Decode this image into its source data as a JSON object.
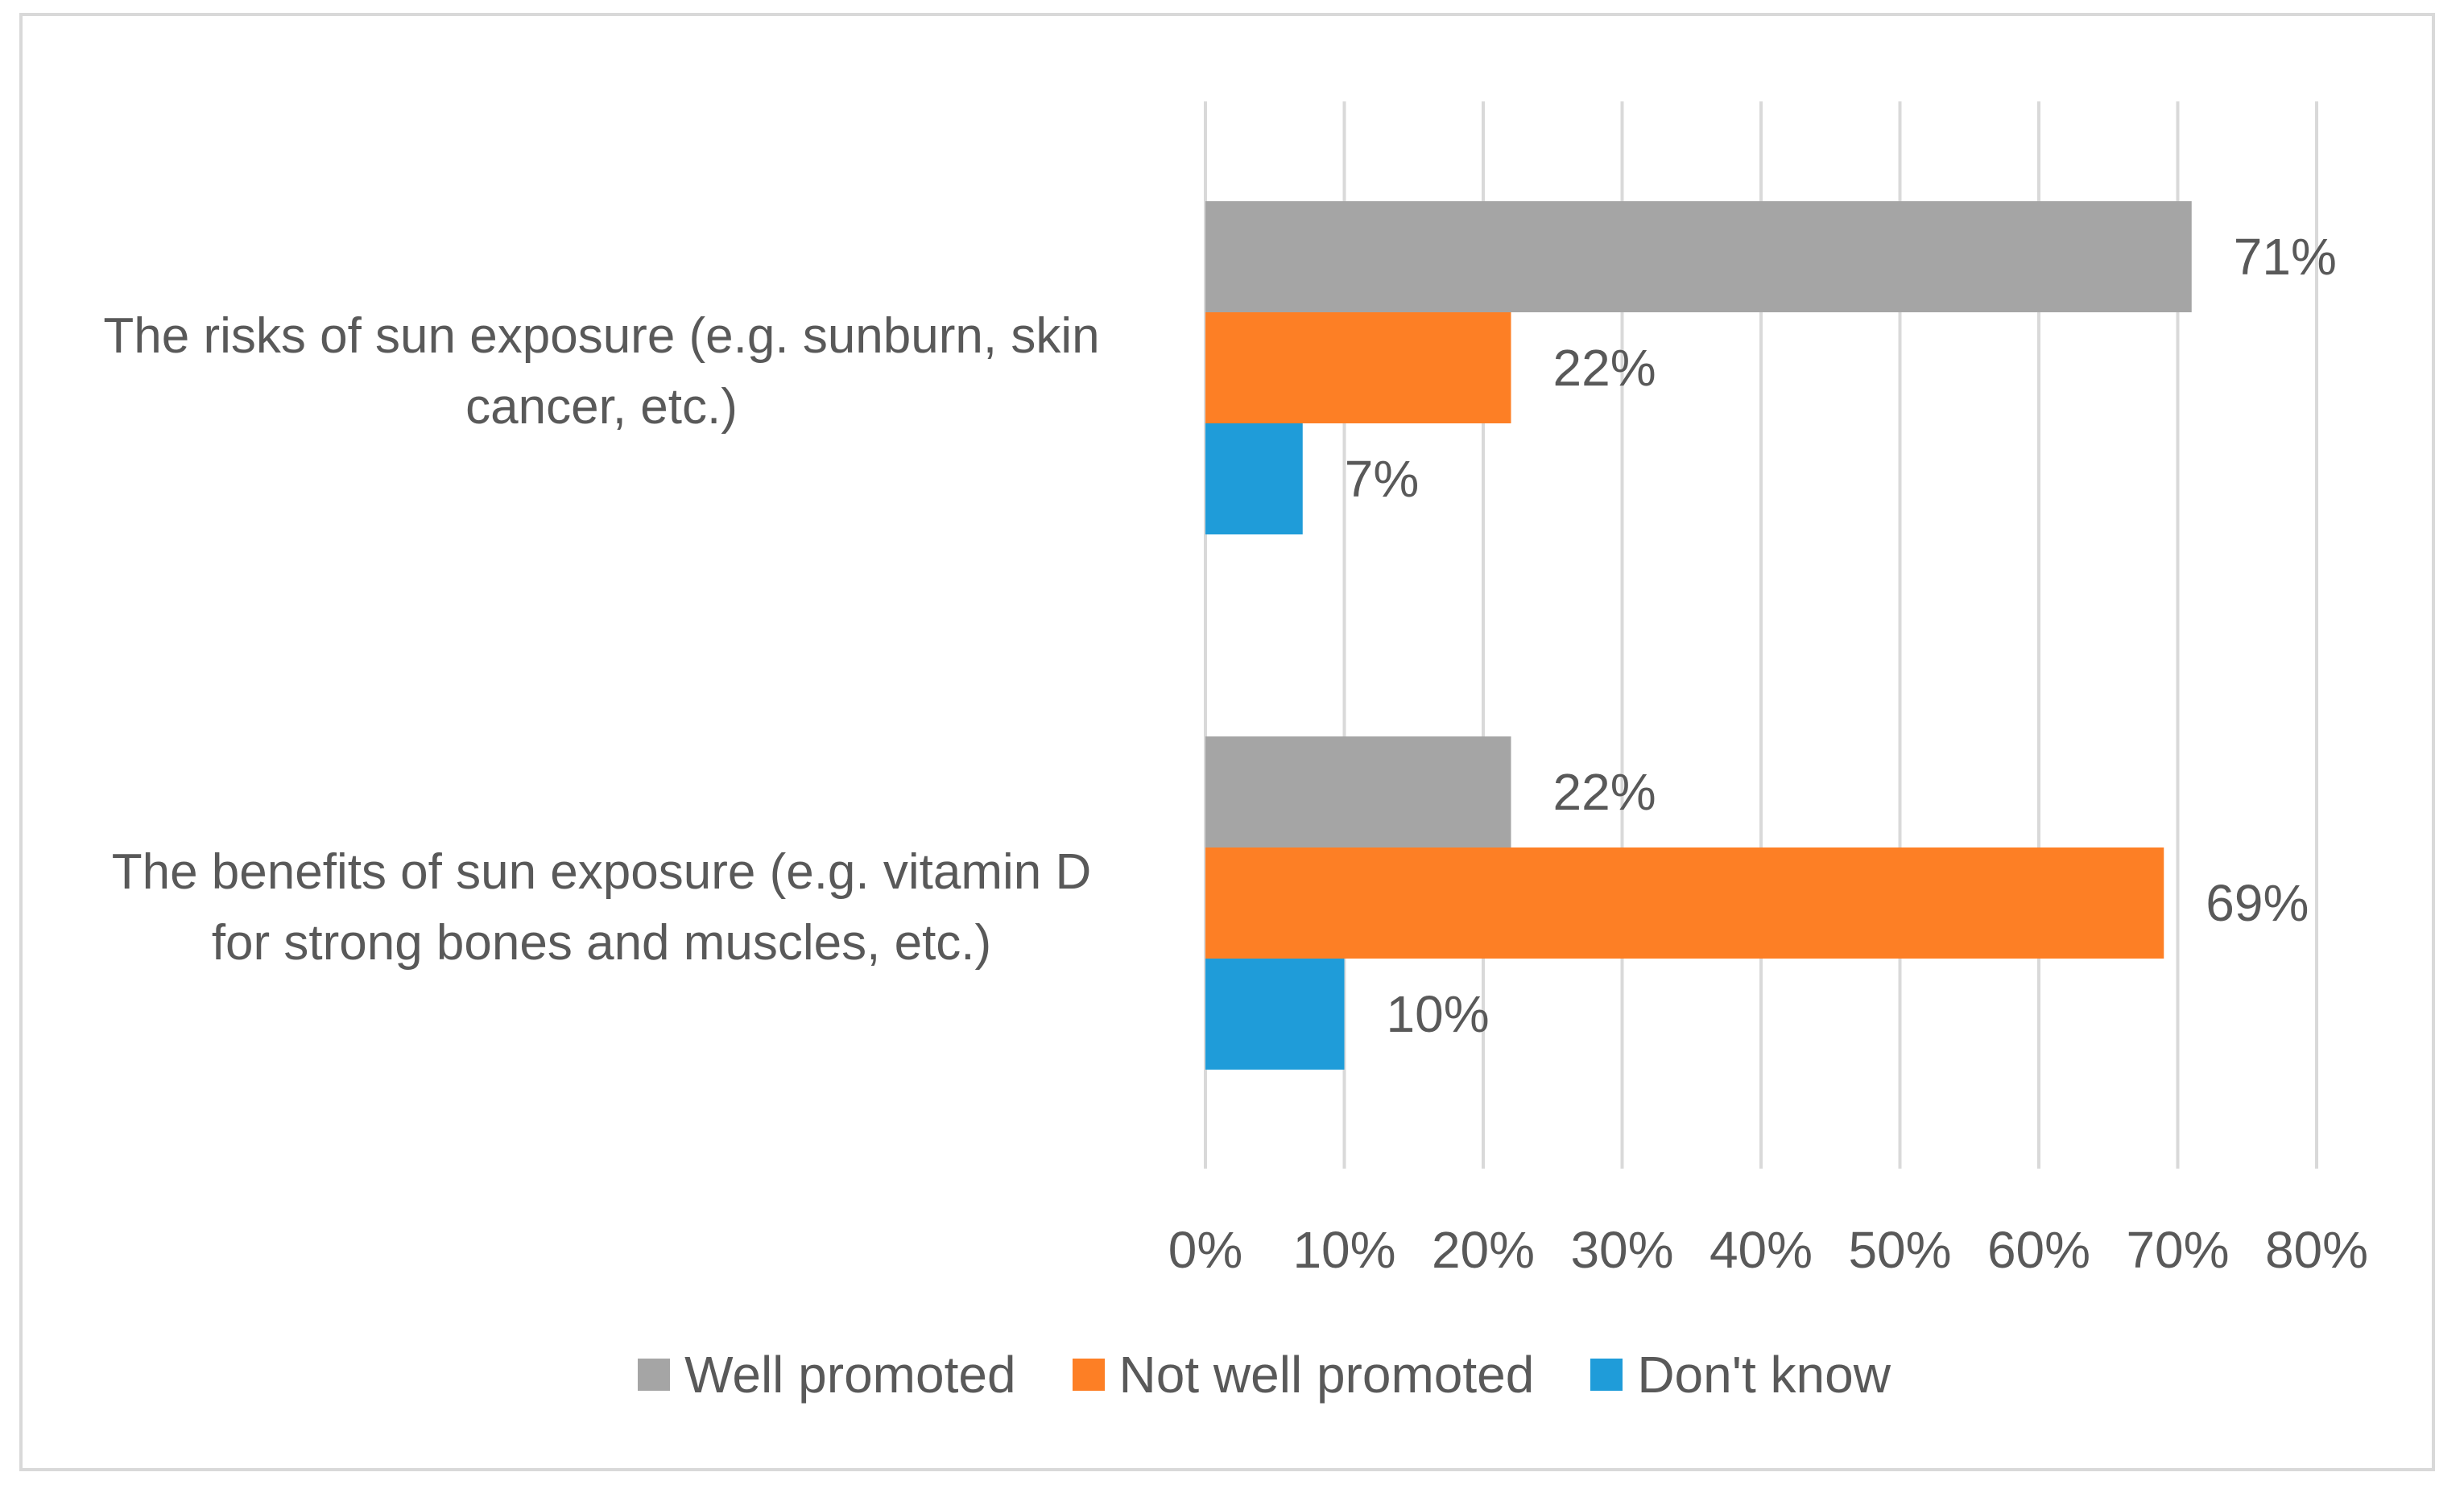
{
  "chart_data": {
    "type": "bar",
    "orientation": "horizontal",
    "title": "",
    "xlabel": "",
    "ylabel": "",
    "xlim": [
      0,
      80
    ],
    "tick_step": 10,
    "tick_labels": [
      "0%",
      "10%",
      "20%",
      "30%",
      "40%",
      "50%",
      "60%",
      "70%",
      "80%"
    ],
    "grid": true,
    "legend_position": "bottom",
    "categories": [
      "The risks of sun exposure (e.g. sunburn, skin cancer, etc.)",
      "The benefits of sun exposure (e.g. vitamin D for strong bones and muscles, etc.)"
    ],
    "category_lines": [
      [
        "The risks of sun exposure (e.g. sunburn, skin",
        "cancer, etc.)"
      ],
      [
        "The benefits of sun exposure (e.g. vitamin D",
        "for strong bones and muscles, etc.)"
      ]
    ],
    "series": [
      {
        "name": "Well promoted",
        "color": "#a5a5a5",
        "values": [
          71,
          22
        ],
        "labels": [
          "71%",
          "22%"
        ]
      },
      {
        "name": "Not well promoted",
        "color": "#fd7f25",
        "values": [
          22,
          69
        ],
        "labels": [
          "22%",
          "69%"
        ]
      },
      {
        "name": "Don't know",
        "color": "#1f9cd9",
        "values": [
          7,
          10
        ],
        "labels": [
          "7%",
          "10%"
        ]
      }
    ]
  }
}
